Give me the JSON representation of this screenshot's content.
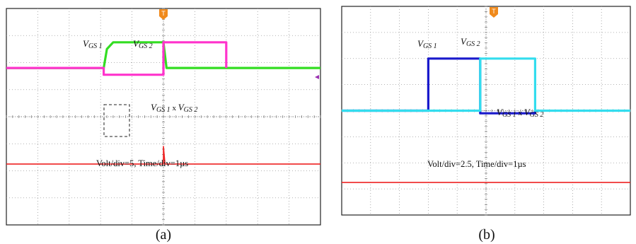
{
  "chart_data": [
    {
      "type": "line",
      "panel": "(a)",
      "caption": "(a)",
      "grid": true,
      "annotation": "Volt/div=5, Time/div=1µs",
      "label_vgs1": "V",
      "label_vgs1_sub": "GS 1",
      "label_vgs2": "V",
      "label_vgs2_sub": "GS 2",
      "label_product_v1": "V",
      "label_product_s1": "GS 1",
      "label_product_x": " x ",
      "label_product_v2": "V",
      "label_product_s2": "GS 2",
      "x_divisions": 10,
      "y_divisions": 8,
      "series": [
        {
          "color": "#33dd22",
          "x": [
            0,
            3.1,
            3.2,
            3.4,
            5.0,
            5.1,
            10
          ],
          "y": [
            1.8,
            1.8,
            2.5,
            2.75,
            2.75,
            1.8,
            1.8
          ]
        },
        {
          "color": "#ff33cc",
          "x": [
            0,
            3.1,
            3.1,
            5.0,
            5.0,
            7.0,
            7.0
          ],
          "y": [
            1.8,
            1.8,
            1.55,
            1.55,
            2.75,
            2.75,
            1.8
          ]
        },
        {
          "color": "#ee2222",
          "x": [
            0,
            5.0,
            5.0,
            5.05,
            10
          ],
          "y": [
            -1.75,
            -1.75,
            -1.1,
            -1.75,
            -1.75
          ]
        }
      ]
    },
    {
      "type": "line",
      "panel": "(b)",
      "caption": "(b)",
      "grid": true,
      "annotation": "Volt/div=2.5, Time/div=1µs",
      "label_vgs1": "V",
      "label_vgs1_sub": "GS 1",
      "label_vgs2": "V",
      "label_vgs2_sub": "GS 2",
      "label_product_v1": "V",
      "label_product_s1": "GS 1",
      "label_product_x": " x ",
      "label_product_v2": "V",
      "label_product_s2": "GS 2",
      "x_divisions": 10,
      "y_divisions": 8,
      "series": [
        {
          "color": "#1a1acc",
          "x": [
            0,
            3.0,
            3.0,
            4.8,
            4.8,
            6.7,
            6.7
          ],
          "y": [
            0.0,
            0.0,
            2.0,
            2.0,
            -0.1,
            -0.1,
            0.0
          ]
        },
        {
          "color": "#33ddee",
          "x": [
            0,
            4.8,
            4.8,
            6.7,
            6.7,
            10
          ],
          "y": [
            0.0,
            0.0,
            2.0,
            2.0,
            0.0,
            0.0
          ]
        },
        {
          "color": "#ee2222",
          "x": [
            0,
            4.8,
            4.8,
            10
          ],
          "y": [
            -2.75,
            -2.75,
            -2.75,
            -2.75
          ]
        }
      ]
    }
  ],
  "ui": {
    "trigger_marker": "T",
    "caption_a": "(a)",
    "caption_b": "(b)"
  }
}
